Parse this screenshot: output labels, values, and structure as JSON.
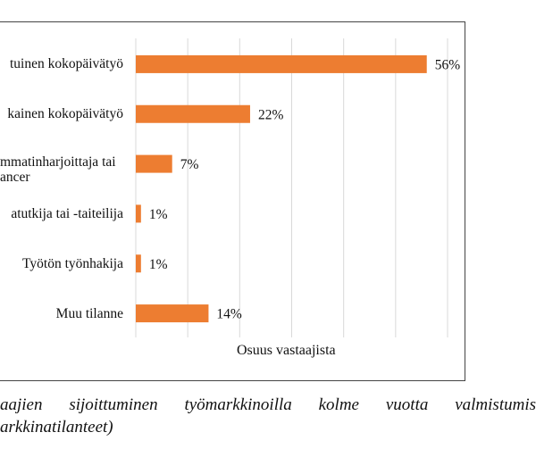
{
  "chart_data": {
    "type": "bar",
    "orientation": "horizontal",
    "categories": [
      "tuinen kokopäivätyö",
      "kainen kokopäivätyö",
      "mmatinharjoittaja tai\nancer",
      "atutkija tai -taiteilija",
      "Työtön työnhakija",
      "Muu tilanne"
    ],
    "values": [
      56,
      22,
      7,
      1,
      1,
      14
    ],
    "data_labels": [
      "56%",
      "22%",
      "7%",
      "1%",
      "1%",
      "14%"
    ],
    "xlabel": "Osuus vastaajista",
    "ylabel": "",
    "xlim": [
      0,
      60
    ],
    "grid": true,
    "bar_color": "#ED7D31"
  },
  "caption": {
    "line1": "aajien sijoittuminen työmarkkinoilla kolme vuotta valmistumis",
    "line2": "arkkinatilanteet)"
  }
}
